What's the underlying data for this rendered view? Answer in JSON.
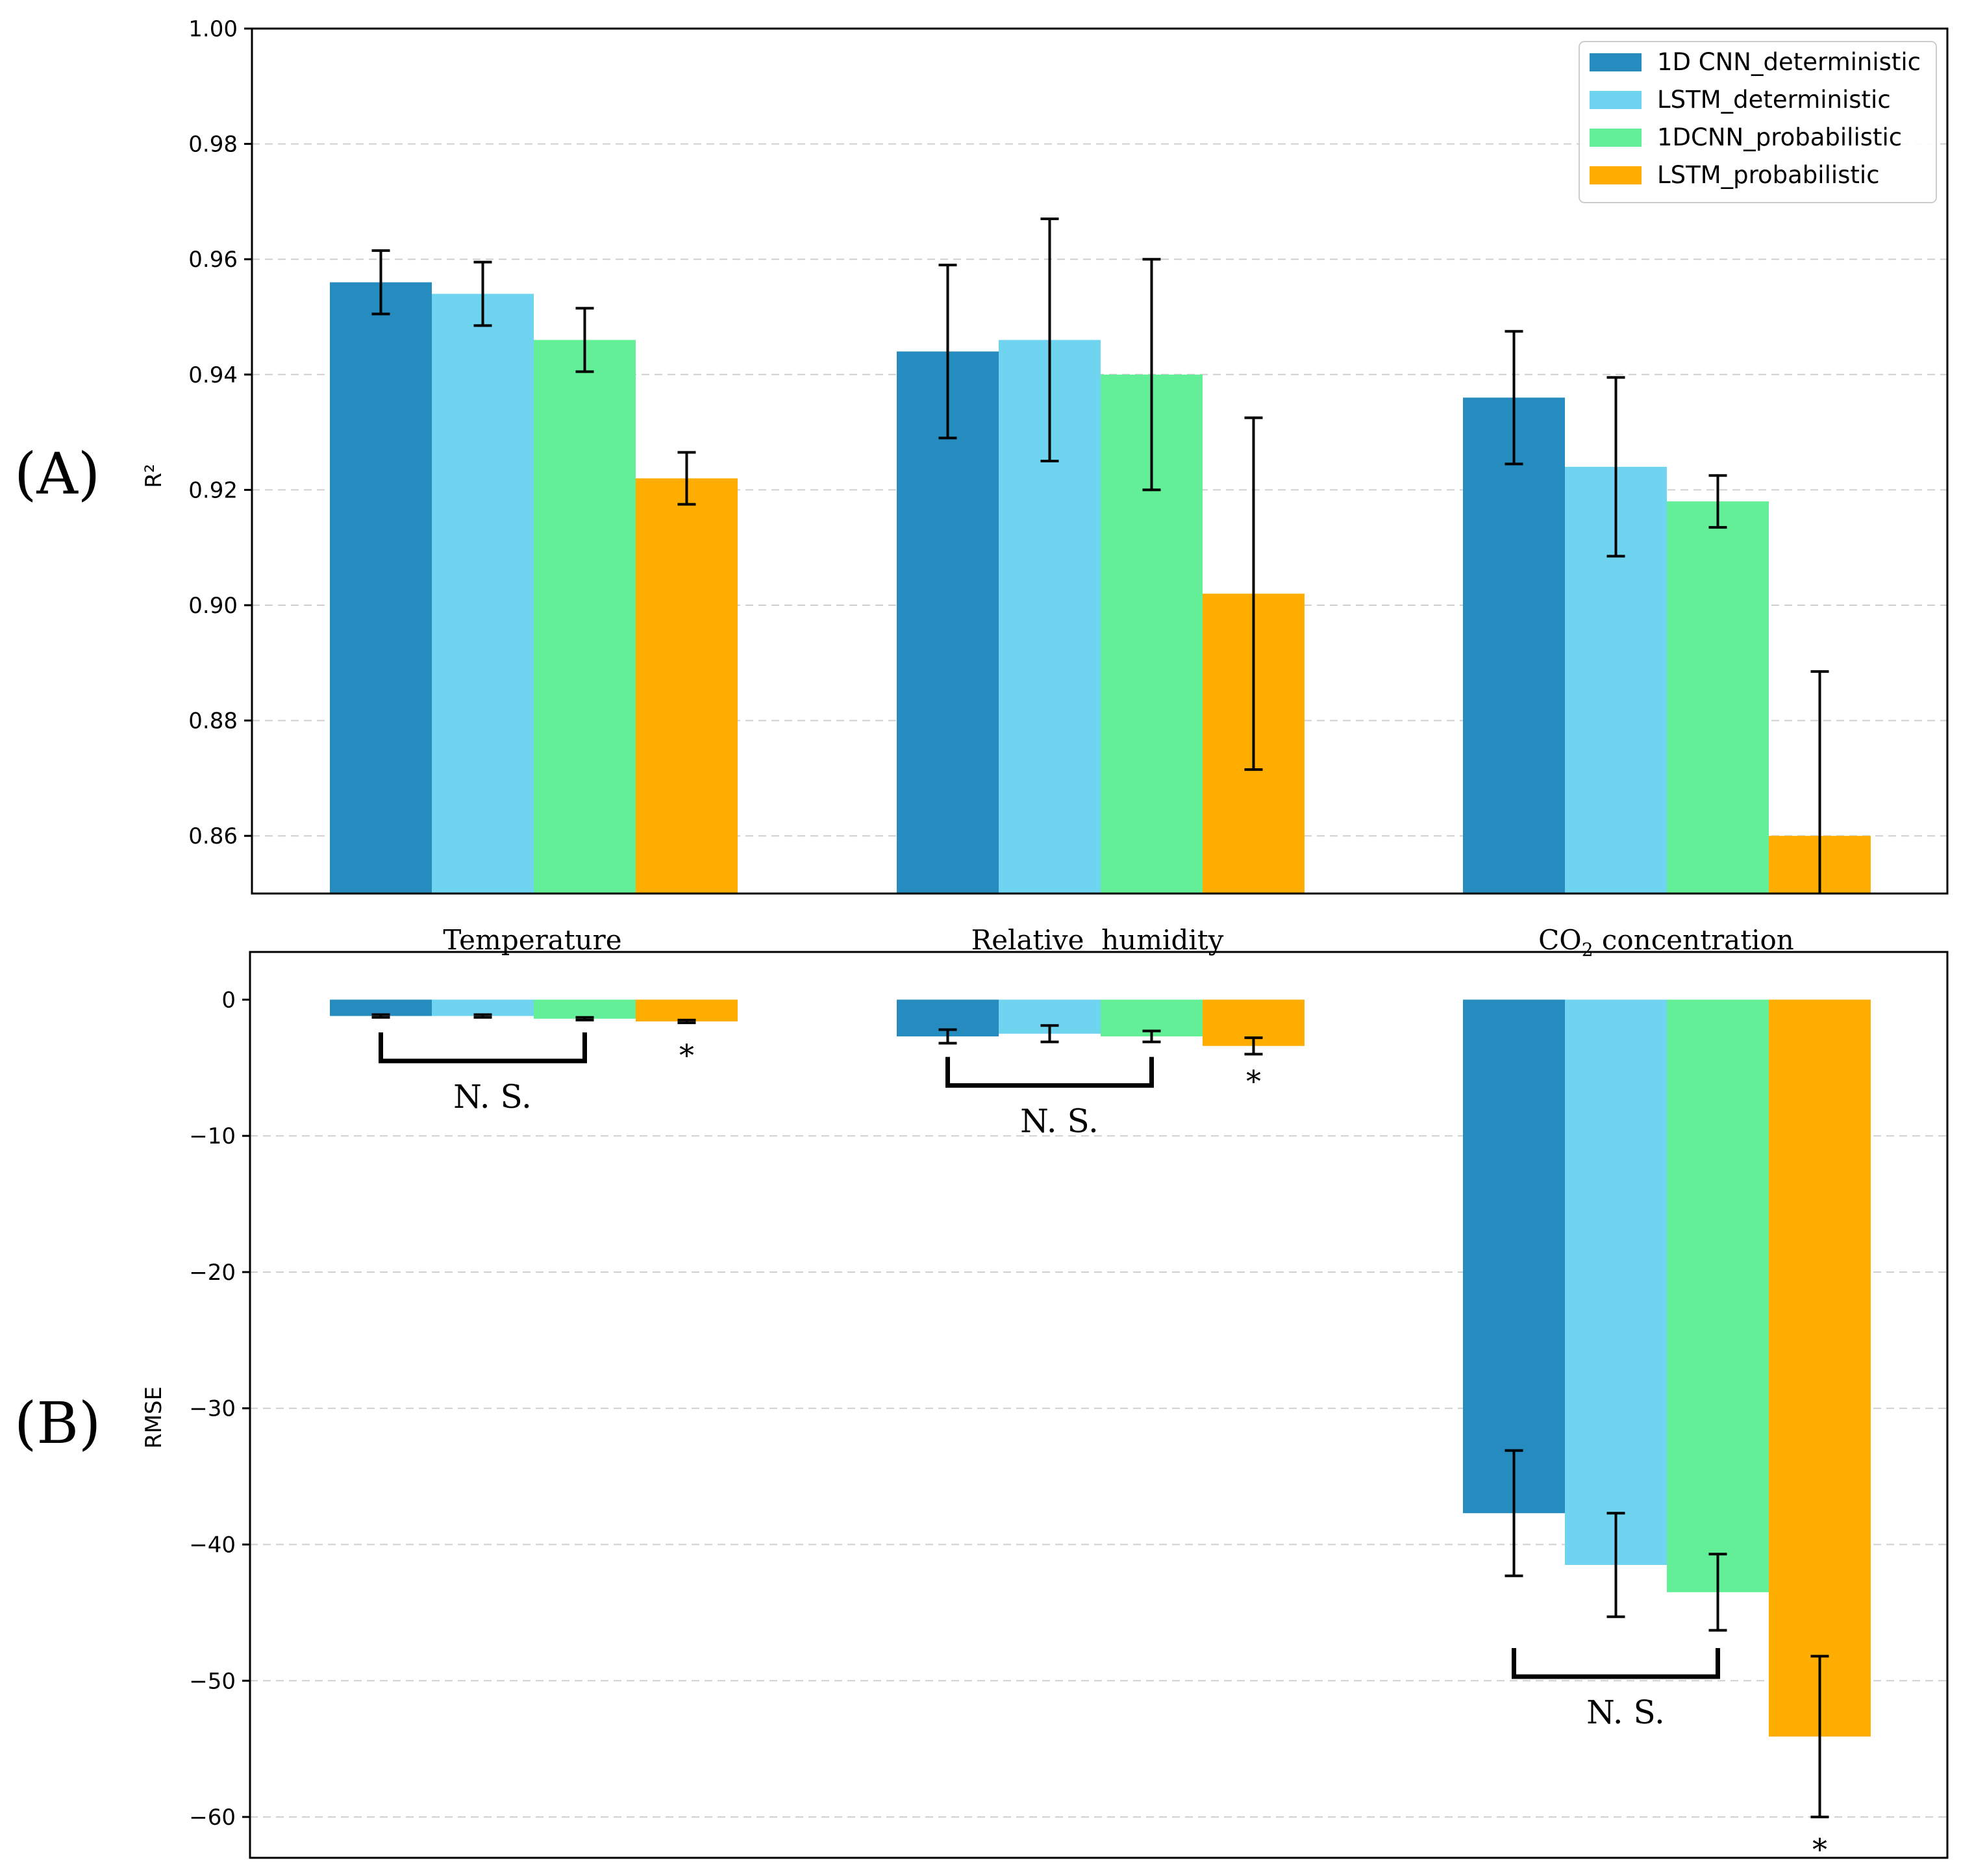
{
  "colors": {
    "series": [
      "#268bbf",
      "#6ed4ef",
      "#62ef97",
      "#ffad00"
    ],
    "grid": "#cfcfcf",
    "axis": "#000000",
    "errorbar": "#000000"
  },
  "chart_data": [
    {
      "type": "bar",
      "panel_label": "(A)",
      "ylabel": "R²",
      "ylim": [
        0.85,
        1.0
      ],
      "yticks": [
        "1.00",
        "0.98",
        "0.96",
        "0.94",
        "0.92",
        "0.90",
        "0.88",
        "0.86"
      ],
      "ytick_values": [
        1.0,
        0.98,
        0.96,
        0.94,
        0.92,
        0.9,
        0.88,
        0.86
      ],
      "grid": true,
      "legend_position": "top-right",
      "categories": [
        {
          "main": "Temperature",
          "sub": "",
          "tail": ""
        },
        {
          "main": "Relative  humidity",
          "sub": "",
          "tail": ""
        },
        {
          "main": "CO",
          "sub": "2",
          "tail": " concentration"
        }
      ],
      "series": [
        {
          "name": "1D CNN_deterministic",
          "values": [
            0.956,
            0.944,
            0.936
          ],
          "errors": [
            0.0055,
            0.015,
            0.0115
          ]
        },
        {
          "name": "LSTM_deterministic",
          "values": [
            0.954,
            0.946,
            0.924
          ],
          "errors": [
            0.0055,
            0.021,
            0.0155
          ]
        },
        {
          "name": "1DCNN_probabilistic",
          "values": [
            0.946,
            0.94,
            0.918
          ],
          "errors": [
            0.0055,
            0.02,
            0.0045
          ]
        },
        {
          "name": "LSTM_probabilistic",
          "values": [
            0.922,
            0.902,
            0.86
          ],
          "errors": [
            0.0045,
            0.0305,
            0.0285
          ]
        }
      ]
    },
    {
      "type": "bar",
      "panel_label": "(B)",
      "ylabel": "RMSE",
      "ylim": [
        -63,
        3.5
      ],
      "yticks": [
        "0",
        "−10",
        "−20",
        "−30",
        "−40",
        "−50",
        "−60"
      ],
      "ytick_values": [
        0,
        -10,
        -20,
        -30,
        -40,
        -50,
        -60
      ],
      "grid": true,
      "categories": [
        "Temperature",
        "Relative humidity",
        "CO2 concentration"
      ],
      "series": [
        {
          "name": "1D CNN_deterministic",
          "values": [
            -1.2,
            -2.7,
            -37.7
          ],
          "errors": [
            0.1,
            0.5,
            4.6
          ]
        },
        {
          "name": "LSTM_deterministic",
          "values": [
            -1.2,
            -2.5,
            -41.5
          ],
          "errors": [
            0.1,
            0.6,
            3.8
          ]
        },
        {
          "name": "1DCNN_probabilistic",
          "values": [
            -1.4,
            -2.7,
            -43.5
          ],
          "errors": [
            0.1,
            0.4,
            2.8
          ]
        },
        {
          "name": "LSTM_probabilistic",
          "values": [
            -1.6,
            -3.4,
            -54.1
          ],
          "errors": [
            0.1,
            0.6,
            5.9
          ]
        }
      ],
      "annotations": [
        {
          "category": 0,
          "bracket_series": [
            0,
            2
          ],
          "bracket_value": -4.5,
          "label": "N. S.",
          "star": "*",
          "star_value": -3.7
        },
        {
          "category": 1,
          "bracket_series": [
            0,
            2
          ],
          "bracket_value": -6.3,
          "label": "N. S.",
          "star": "*",
          "star_value": -5.6
        },
        {
          "category": 2,
          "bracket_series": [
            0,
            2
          ],
          "bracket_value": -49.7,
          "label": "N. S.",
          "star": "*",
          "star_value": -62.0
        }
      ]
    }
  ]
}
